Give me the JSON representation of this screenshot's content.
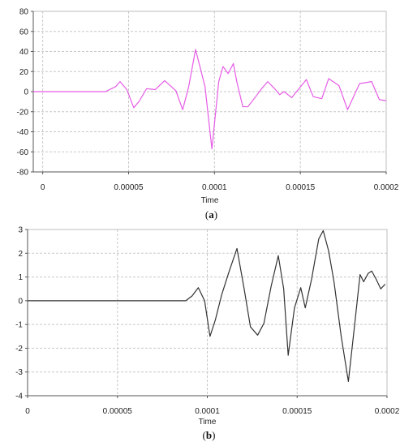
{
  "chart_data": [
    {
      "type": "line",
      "panel_label": "a",
      "caption_open": "(",
      "caption_close": ")",
      "xlabel": "Time",
      "ylabel": "",
      "xlim": [
        -5.5e-06,
        0.0002
      ],
      "ylim": [
        -80,
        80
      ],
      "x_ticks": [
        0,
        5e-05,
        0.0001,
        0.00015,
        0.0002
      ],
      "x_tick_labels": [
        "0",
        "0.00005",
        "0.0001",
        "0.00015",
        "0.0002"
      ],
      "y_ticks": [
        -80,
        -60,
        -40,
        -20,
        0,
        20,
        40,
        60,
        80
      ],
      "y_tick_labels": [
        "-80",
        "-60",
        "-40",
        "-20",
        "0",
        "20",
        "40",
        "60",
        "80"
      ],
      "grid": true,
      "line_color": "#e65ce6",
      "x": [
        -5.5e-06,
        3.65e-05,
        4.25e-05,
        4.5e-05,
        4.9e-05,
        5.3e-05,
        5.6e-05,
        6.05e-05,
        6.55e-05,
        7.1e-05,
        7.75e-05,
        8.15e-05,
        8.5e-05,
        8.9e-05,
        9.45e-05,
        9.85e-05,
        0.0001025,
        0.000105,
        0.000108,
        0.000111,
        0.000113,
        0.0001165,
        0.0001195,
        0.000124,
        0.0001275,
        0.000131,
        0.000135,
        0.000138,
        0.0001405,
        0.000145,
        0.0001535,
        0.0001575,
        0.0001625,
        0.0001665,
        0.0001725,
        0.0001775,
        0.0001845,
        0.0001915,
        0.000196,
        0.0002
      ],
      "y": [
        0,
        0,
        5,
        10,
        2,
        -16,
        -10,
        3,
        2,
        11,
        1,
        -18,
        5,
        42,
        5,
        -57,
        10,
        25,
        18,
        28,
        10,
        -15,
        -15,
        -5,
        3,
        10,
        3,
        -3,
        0,
        -6,
        12,
        -5,
        -7,
        13,
        6,
        -18,
        8,
        10,
        -8,
        -9
      ]
    },
    {
      "type": "line",
      "panel_label": "b",
      "caption_open": "(",
      "caption_close": ")",
      "xlabel": "Time",
      "ylabel": "",
      "xlim": [
        0,
        0.0002
      ],
      "ylim": [
        -4,
        3
      ],
      "x_ticks": [
        0,
        5e-05,
        0.0001,
        0.00015,
        0.0002
      ],
      "x_tick_labels": [
        "0",
        "0.00005",
        "0.0001",
        "0.00015",
        "0.0002"
      ],
      "y_ticks": [
        -4,
        -3,
        -2,
        -1,
        0,
        1,
        2,
        3
      ],
      "y_tick_labels": [
        "-4",
        "-3",
        "-2",
        "-1",
        "0",
        "1",
        "2",
        "3"
      ],
      "grid": true,
      "line_color": "#333333",
      "x": [
        0,
        8.8e-05,
        9.15e-05,
        9.5e-05,
        9.85e-05,
        0.0001015,
        0.0001045,
        0.000108,
        0.000112,
        0.0001165,
        0.0001205,
        0.000124,
        0.000128,
        0.0001315,
        0.0001355,
        0.0001395,
        0.0001425,
        0.000145,
        0.0001485,
        0.000152,
        0.0001545,
        0.000158,
        0.000162,
        0.0001645,
        0.0001675,
        0.0001705,
        0.0001745,
        0.0001785,
        0.000182,
        0.000185,
        0.000187,
        0.0001895,
        0.0001915,
        0.000194,
        0.0001965,
        0.000199
      ],
      "y": [
        0,
        0,
        0.2,
        0.55,
        0,
        -1.5,
        -0.8,
        0.25,
        1.2,
        2.2,
        0.5,
        -1.1,
        -1.45,
        -0.95,
        0.6,
        1.9,
        0.5,
        -2.3,
        -0.3,
        0.55,
        -0.3,
        0.9,
        2.6,
        2.95,
        2.1,
        0.8,
        -1.5,
        -3.4,
        -1.0,
        1.1,
        0.8,
        1.15,
        1.25,
        0.9,
        0.5,
        0.7
      ]
    }
  ]
}
